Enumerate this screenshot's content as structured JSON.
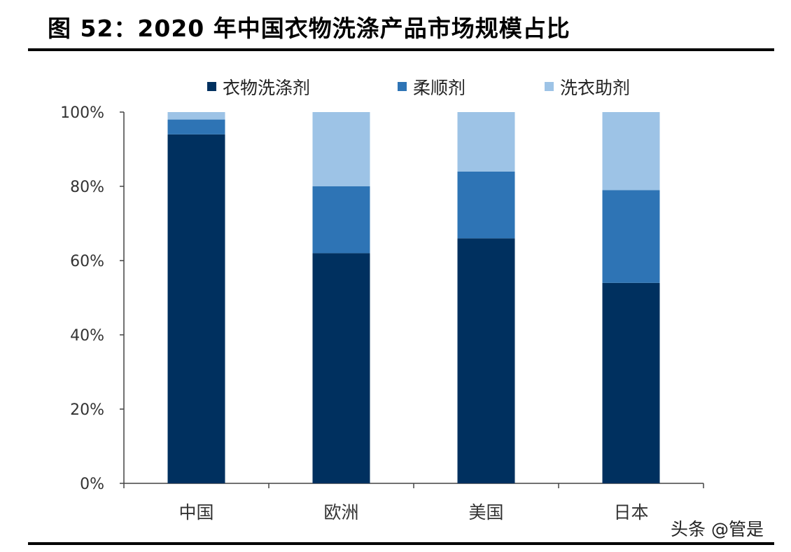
{
  "title": "图 52：2020 年中国衣物洗涤产品市场规模占比",
  "watermark": "头条 @管是",
  "chart_data": {
    "type": "bar",
    "stacked": true,
    "title": "",
    "xlabel": "",
    "ylabel": "",
    "categories": [
      "中国",
      "欧洲",
      "美国",
      "日本"
    ],
    "series": [
      {
        "name": "衣物洗涤剂",
        "color": "#00305f",
        "values": [
          94,
          62,
          66,
          54
        ]
      },
      {
        "name": "柔顺剂",
        "color": "#2e74b5",
        "values": [
          4,
          18,
          18,
          25
        ]
      },
      {
        "name": "洗衣助剂",
        "color": "#9dc3e6",
        "values": [
          2,
          20,
          16,
          21
        ]
      }
    ],
    "ylim": [
      0,
      100
    ],
    "yticks": [
      "0%",
      "20%",
      "40%",
      "60%",
      "80%",
      "100%"
    ],
    "grid": false,
    "legend": "top"
  }
}
